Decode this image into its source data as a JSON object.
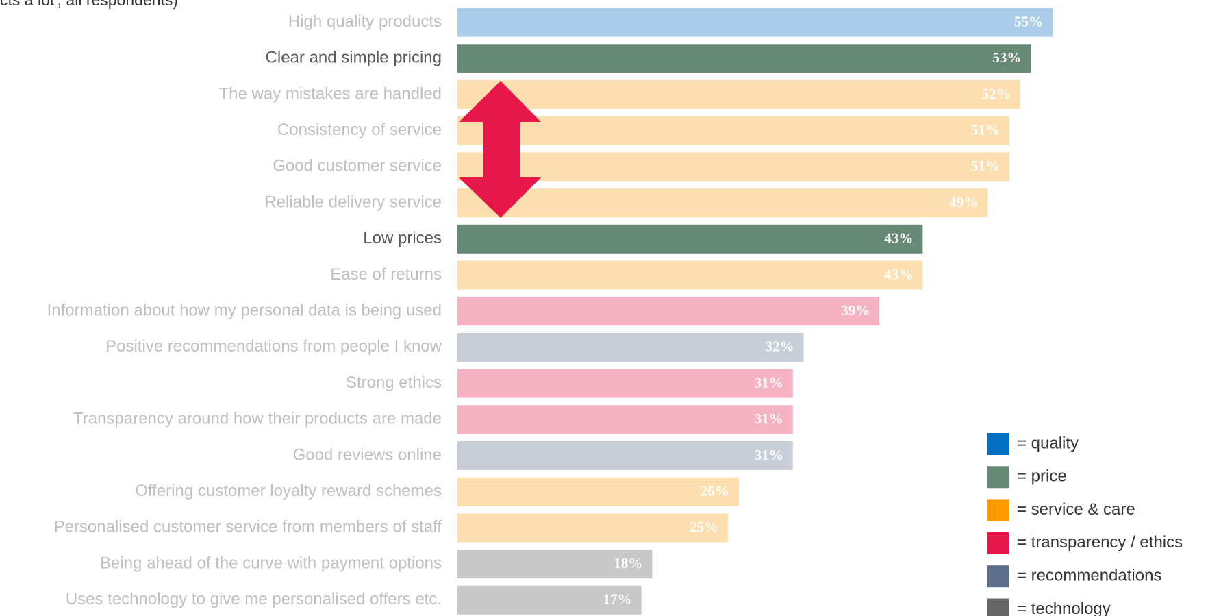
{
  "chart_data": {
    "type": "barh",
    "subtitle": "cts a lot', all respondents)",
    "categories": [
      "High quality products",
      "Clear and simple pricing",
      "The way mistakes are handled",
      "Consistency of service",
      "Good customer service",
      "Reliable delivery service",
      "Low prices",
      "Ease of returns",
      "Information about how my personal data is being used",
      "Positive recommendations from people I know",
      "Strong ethics",
      "Transparency around how their products are made",
      "Good reviews online",
      "Offering customer loyalty reward schemes",
      "Personalised customer service from members of staff",
      "Being ahead of the curve with payment options",
      "Uses technology to give me personalised offers etc."
    ],
    "values": [
      55,
      53,
      52,
      51,
      51,
      49,
      43,
      43,
      39,
      32,
      31,
      31,
      31,
      26,
      25,
      18,
      17
    ],
    "value_labels": [
      "55%",
      "53%",
      "52%",
      "51%",
      "51%",
      "49%",
      "43%",
      "43%",
      "39%",
      "32%",
      "31%",
      "31%",
      "31%",
      "26%",
      "25%",
      "18%",
      "17%"
    ],
    "colors": [
      "#abcde9",
      "#678a76",
      "#fddeae",
      "#fddeae",
      "#fddeae",
      "#fddeae",
      "#678a76",
      "#fddeae",
      "#f5b2c2",
      "#c7ced8",
      "#f5b2c2",
      "#f5b2c2",
      "#c7ced8",
      "#fddeae",
      "#fddeae",
      "#c8c8c8",
      "#c8c8c8"
    ],
    "label_colors": [
      "#bfbfbf",
      "#595959",
      "#bfbfbf",
      "#bfbfbf",
      "#bfbfbf",
      "#bfbfbf",
      "#595959",
      "#bfbfbf",
      "#bfbfbf",
      "#bfbfbf",
      "#bfbfbf",
      "#bfbfbf",
      "#bfbfbf",
      "#bfbfbf",
      "#bfbfbf",
      "#bfbfbf",
      "#bfbfbf"
    ],
    "xlim": [
      0,
      55
    ],
    "legend": [
      {
        "name": "= quality",
        "color": "#0070c0"
      },
      {
        "name": "= price",
        "color": "#678a76"
      },
      {
        "name": "= service & care",
        "color": "#ff9900"
      },
      {
        "name": "= transparency / ethics",
        "color": "#e8174a"
      },
      {
        "name": "= recommendations",
        "color": "#5c6f8a"
      },
      {
        "name": "= technology",
        "color": "#666666"
      }
    ]
  }
}
